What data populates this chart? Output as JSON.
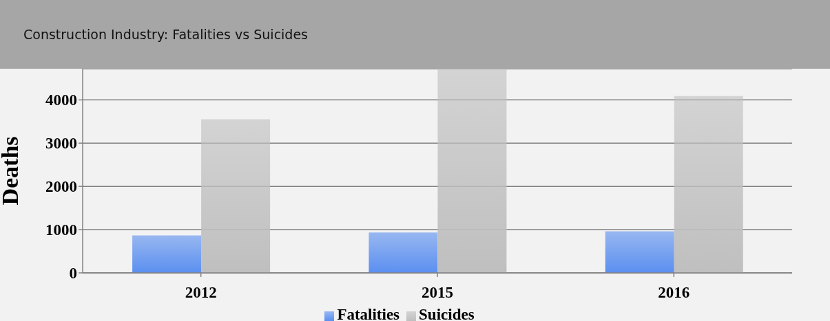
{
  "chart_data": {
    "type": "bar",
    "title": "Construction Industry: Fatalities vs Suicides",
    "ylabel": "Deaths",
    "categories": [
      "2012",
      "2015",
      "2016"
    ],
    "series": [
      {
        "name": "Fatalities",
        "color": "#5b8ff0",
        "values": [
          865,
          933,
          963
        ]
      },
      {
        "name": "Suicides",
        "color": "#bfbfbf",
        "values": [
          3550,
          4720,
          4090
        ]
      }
    ],
    "ylim": [
      0,
      4720
    ],
    "yticks": [
      0,
      1000,
      2000,
      3000,
      4000
    ],
    "grid": "y",
    "legend": "bottom"
  }
}
